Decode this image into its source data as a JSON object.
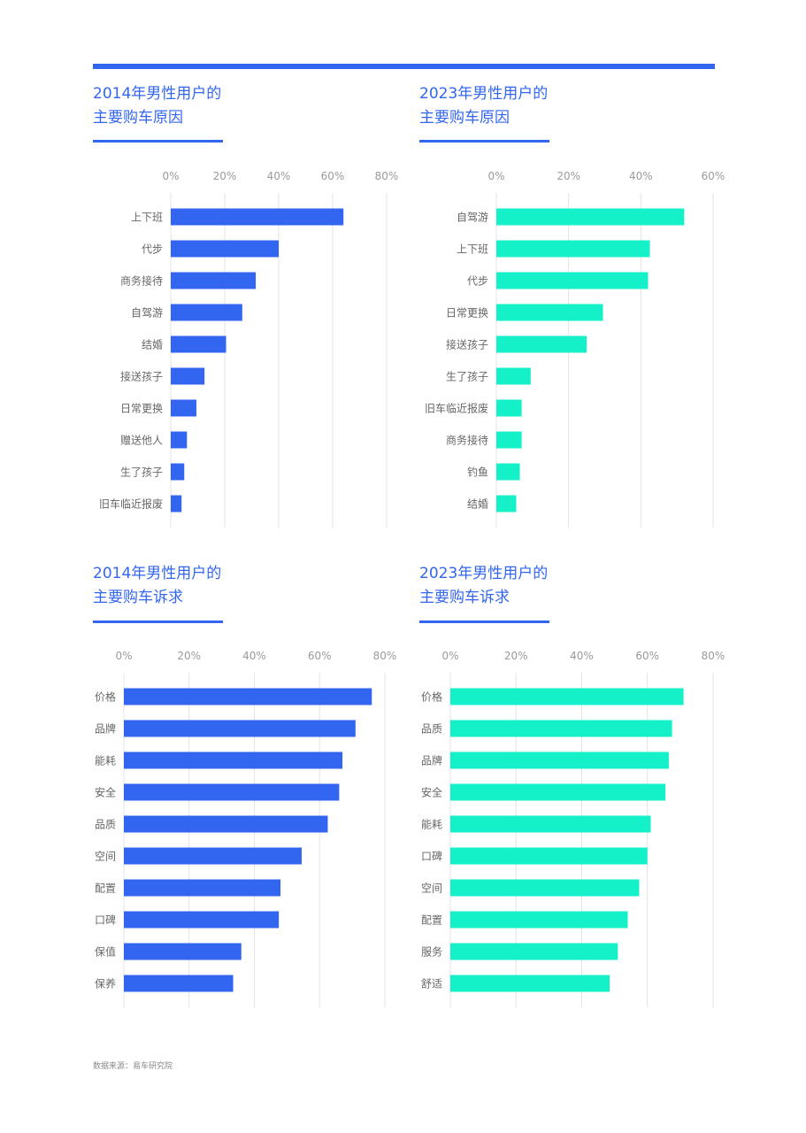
{
  "source_note": "数据来源：易车研究院",
  "colors": {
    "accent": "#3366f0",
    "blue_bar": "#3366f0",
    "teal_bar": "#14f0c8"
  },
  "panels": [
    {
      "title_line1": "2014年男性用户的",
      "title_line2": "主要购车原因"
    },
    {
      "title_line1": "2023年男性用户的",
      "title_line2": "主要购车原因"
    },
    {
      "title_line1": "2014年男性用户的",
      "title_line2": "主要购车诉求"
    },
    {
      "title_line1": "2023年男性用户的",
      "title_line2": "主要购车诉求"
    }
  ],
  "chart_data": [
    {
      "type": "bar",
      "orientation": "horizontal",
      "title": "2014年男性用户的主要购车原因",
      "xlim": [
        0,
        80
      ],
      "ticks": [
        "0%",
        "20%",
        "40%",
        "60%",
        "80%"
      ],
      "bar_color": "#3366f0",
      "categories": [
        "上下班",
        "代步",
        "商务接待",
        "自驾游",
        "结婚",
        "接送孩子",
        "日常更换",
        "赠送他人",
        "生了孩子",
        "旧车临近报废"
      ],
      "values": [
        64,
        40,
        31.5,
        26.5,
        20.5,
        12.5,
        9.5,
        6,
        5,
        4
      ]
    },
    {
      "type": "bar",
      "orientation": "horizontal",
      "title": "2023年男性用户的主要购车原因",
      "xlim": [
        0,
        60
      ],
      "ticks": [
        "0%",
        "20%",
        "40%",
        "60%"
      ],
      "bar_color": "#14f0c8",
      "categories": [
        "自驾游",
        "上下班",
        "代步",
        "日常更换",
        "接送孩子",
        "生了孩子",
        "旧车临近报废",
        "商务接待",
        "钓鱼",
        "结婚"
      ],
      "values": [
        52,
        42.5,
        42,
        29.5,
        25,
        9.5,
        7,
        7,
        6.5,
        5.5
      ]
    },
    {
      "type": "bar",
      "orientation": "horizontal",
      "title": "2014年男性用户的主要购车诉求",
      "xlim": [
        0,
        80
      ],
      "ticks": [
        "0%",
        "20%",
        "40%",
        "60%",
        "80%"
      ],
      "bar_color": "#3366f0",
      "categories": [
        "价格",
        "品牌",
        "能耗",
        "安全",
        "品质",
        "空间",
        "配置",
        "口碑",
        "保值",
        "保养"
      ],
      "values": [
        76,
        71,
        67,
        66,
        62.5,
        54.5,
        48,
        47.5,
        36,
        33.5
      ]
    },
    {
      "type": "bar",
      "orientation": "horizontal",
      "title": "2023年男性用户的主要购车诉求",
      "xlim": [
        0,
        80
      ],
      "ticks": [
        "0%",
        "20%",
        "40%",
        "60%",
        "80%"
      ],
      "bar_color": "#14f0c8",
      "categories": [
        "价格",
        "品质",
        "品牌",
        "安全",
        "能耗",
        "口碑",
        "空间",
        "配置",
        "服务",
        "舒适"
      ],
      "values": [
        71,
        67.5,
        66.5,
        65.5,
        61,
        60,
        57.5,
        54,
        51,
        48.5
      ]
    }
  ]
}
